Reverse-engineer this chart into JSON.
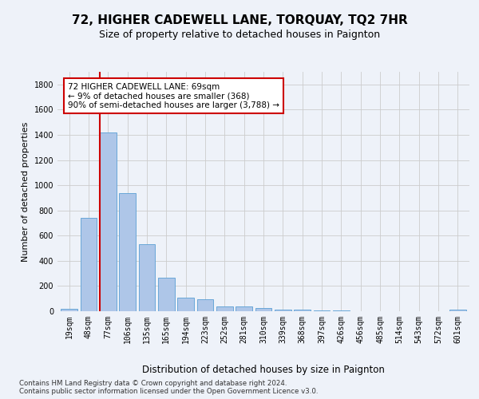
{
  "title": "72, HIGHER CADEWELL LANE, TORQUAY, TQ2 7HR",
  "subtitle": "Size of property relative to detached houses in Paignton",
  "xlabel_bottom": "Distribution of detached houses by size in Paignton",
  "ylabel": "Number of detached properties",
  "categories": [
    "19sqm",
    "48sqm",
    "77sqm",
    "106sqm",
    "135sqm",
    "165sqm",
    "194sqm",
    "223sqm",
    "252sqm",
    "281sqm",
    "310sqm",
    "339sqm",
    "368sqm",
    "397sqm",
    "426sqm",
    "456sqm",
    "485sqm",
    "514sqm",
    "543sqm",
    "572sqm",
    "601sqm"
  ],
  "values": [
    20,
    740,
    1420,
    940,
    530,
    265,
    105,
    95,
    40,
    40,
    27,
    15,
    10,
    5,
    8,
    3,
    2,
    1,
    1,
    1,
    15
  ],
  "bar_color": "#aec6e8",
  "bar_edge_color": "#5a9fd4",
  "bar_alpha": 1.0,
  "redline_index": 2,
  "ylim": [
    0,
    1900
  ],
  "yticks": [
    0,
    200,
    400,
    600,
    800,
    1000,
    1200,
    1400,
    1600,
    1800
  ],
  "annotation_text": "72 HIGHER CADEWELL LANE: 69sqm\n← 9% of detached houses are smaller (368)\n90% of semi-detached houses are larger (3,788) →",
  "annotation_box_color": "#ffffff",
  "annotation_box_edge": "#cc0000",
  "redline_color": "#cc0000",
  "footer": "Contains HM Land Registry data © Crown copyright and database right 2024.\nContains public sector information licensed under the Open Government Licence v3.0.",
  "background_color": "#eef2f9",
  "plot_bg_color": "#eef2f9",
  "grid_color": "#cccccc",
  "title_fontsize": 11,
  "subtitle_fontsize": 9,
  "ylabel_fontsize": 8,
  "tick_fontsize": 7,
  "annot_fontsize": 7.5,
  "footer_fontsize": 6.2
}
